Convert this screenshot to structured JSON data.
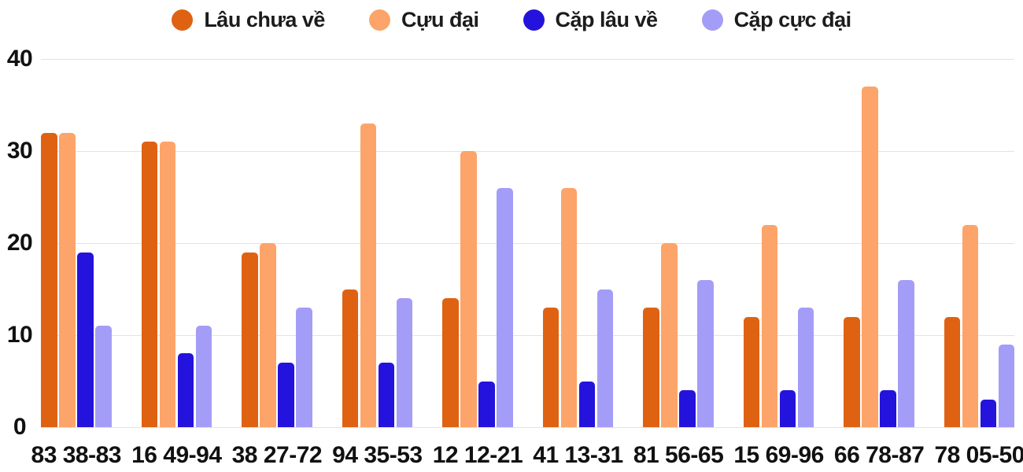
{
  "chart_data": {
    "type": "bar",
    "title": "",
    "xlabel": "",
    "ylabel": "",
    "categories": [
      "83 38-83",
      "16 49-94",
      "38 27-72",
      "94 35-53",
      "12 12-21",
      "41 13-31",
      "81 56-65",
      "15 69-96",
      "66 78-87",
      "78 05-50"
    ],
    "series": [
      {
        "name": "Lâu chưa về",
        "color": "#df6213",
        "values": [
          32,
          31,
          19,
          15,
          14,
          13,
          13,
          12,
          12,
          12
        ]
      },
      {
        "name": "Cựu đại",
        "color": "#fca469",
        "values": [
          32,
          31,
          20,
          33,
          30,
          26,
          20,
          22,
          37,
          22
        ]
      },
      {
        "name": "Cặp lâu về",
        "color": "#2413dc",
        "values": [
          19,
          8,
          7,
          7,
          5,
          5,
          4,
          4,
          4,
          3
        ]
      },
      {
        "name": "Cặp cực đại",
        "color": "#a49df7",
        "values": [
          11,
          11,
          13,
          14,
          26,
          15,
          16,
          13,
          16,
          9
        ]
      }
    ],
    "y_ticks": [
      0,
      10,
      20,
      30,
      40
    ],
    "ylim": [
      0,
      40
    ],
    "grid": true,
    "legend_position": "top"
  },
  "colors": {
    "text": "#1c1c1c",
    "axis_text": "#111111",
    "gridline": "#e3e3e3",
    "background": "#ffffff"
  }
}
